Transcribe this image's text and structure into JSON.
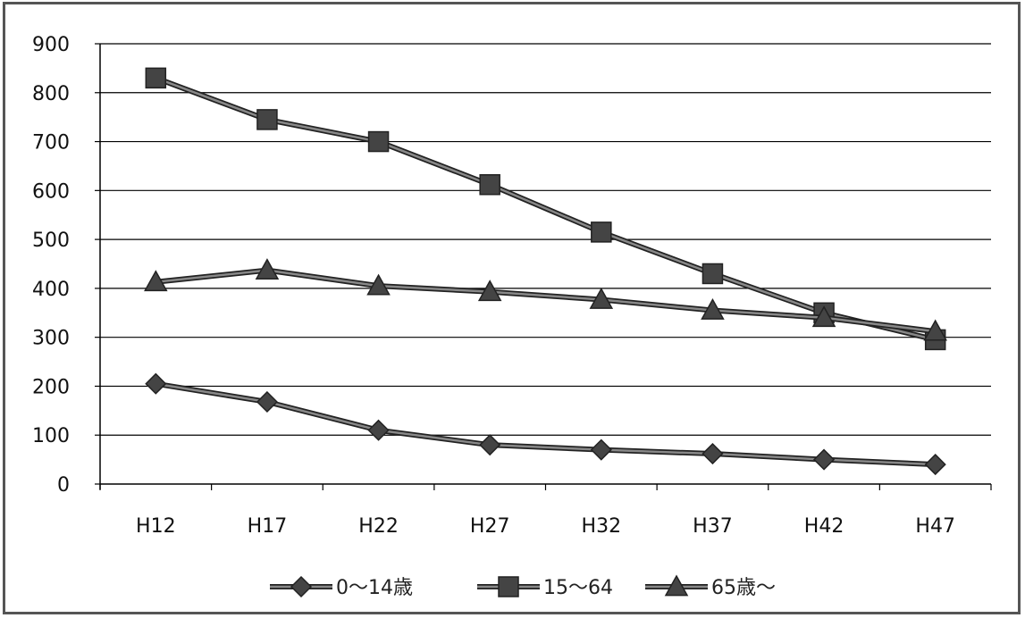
{
  "chart_data": {
    "type": "line",
    "categories": [
      "H12",
      "H17",
      "H22",
      "H27",
      "H32",
      "H37",
      "H42",
      "H47"
    ],
    "ylim": [
      0,
      900
    ],
    "yticks": [
      0,
      100,
      200,
      300,
      400,
      500,
      600,
      700,
      800,
      900
    ],
    "grid": true,
    "legend_position": "bottom",
    "series": [
      {
        "name": "0～14歳",
        "marker": "diamond",
        "values": [
          205,
          168,
          110,
          80,
          70,
          62,
          50,
          40
        ]
      },
      {
        "name": "15～64",
        "marker": "square",
        "values": [
          830,
          745,
          700,
          612,
          515,
          430,
          350,
          295
        ]
      },
      {
        "name": "65歳～",
        "marker": "triangle",
        "values": [
          413,
          437,
          405,
          393,
          377,
          355,
          340,
          312
        ]
      }
    ],
    "colors": {
      "line": "#3a3a3a",
      "grid": "#000000",
      "marker": "#444444"
    }
  }
}
